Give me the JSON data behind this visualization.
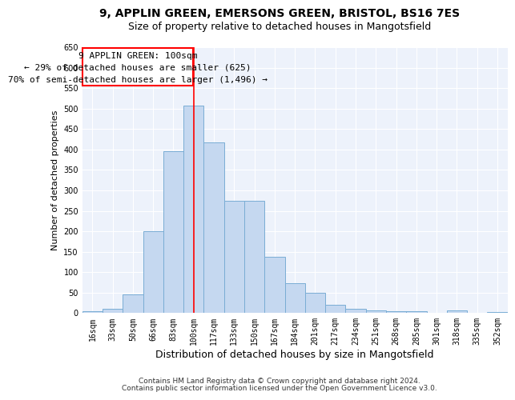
{
  "title1": "9, APPLIN GREEN, EMERSONS GREEN, BRISTOL, BS16 7ES",
  "title2": "Size of property relative to detached houses in Mangotsfield",
  "xlabel": "Distribution of detached houses by size in Mangotsfield",
  "ylabel": "Number of detached properties",
  "categories": [
    "16sqm",
    "33sqm",
    "50sqm",
    "66sqm",
    "83sqm",
    "100sqm",
    "117sqm",
    "133sqm",
    "150sqm",
    "167sqm",
    "184sqm",
    "201sqm",
    "217sqm",
    "234sqm",
    "251sqm",
    "268sqm",
    "285sqm",
    "301sqm",
    "318sqm",
    "335sqm",
    "352sqm"
  ],
  "values": [
    5,
    10,
    45,
    200,
    395,
    507,
    417,
    275,
    275,
    137,
    73,
    50,
    20,
    10,
    7,
    5,
    5,
    0,
    7,
    0,
    3
  ],
  "bar_color": "#c5d8f0",
  "bar_edge_color": "#7aadd4",
  "marker_label": "9 APPLIN GREEN: 100sqm",
  "annotation_line1": "← 29% of detached houses are smaller (625)",
  "annotation_line2": "70% of semi-detached houses are larger (1,496) →",
  "vline_color": "red",
  "box_color": "red",
  "background_color": "#edf2fb",
  "ylim": [
    0,
    650
  ],
  "yticks": [
    0,
    50,
    100,
    150,
    200,
    250,
    300,
    350,
    400,
    450,
    500,
    550,
    600,
    650
  ],
  "footer1": "Contains HM Land Registry data © Crown copyright and database right 2024.",
  "footer2": "Contains public sector information licensed under the Open Government Licence v3.0.",
  "title1_fontsize": 10,
  "title2_fontsize": 9,
  "xlabel_fontsize": 9,
  "ylabel_fontsize": 8,
  "tick_fontsize": 7,
  "annot_fontsize": 8,
  "footer_fontsize": 6.5
}
